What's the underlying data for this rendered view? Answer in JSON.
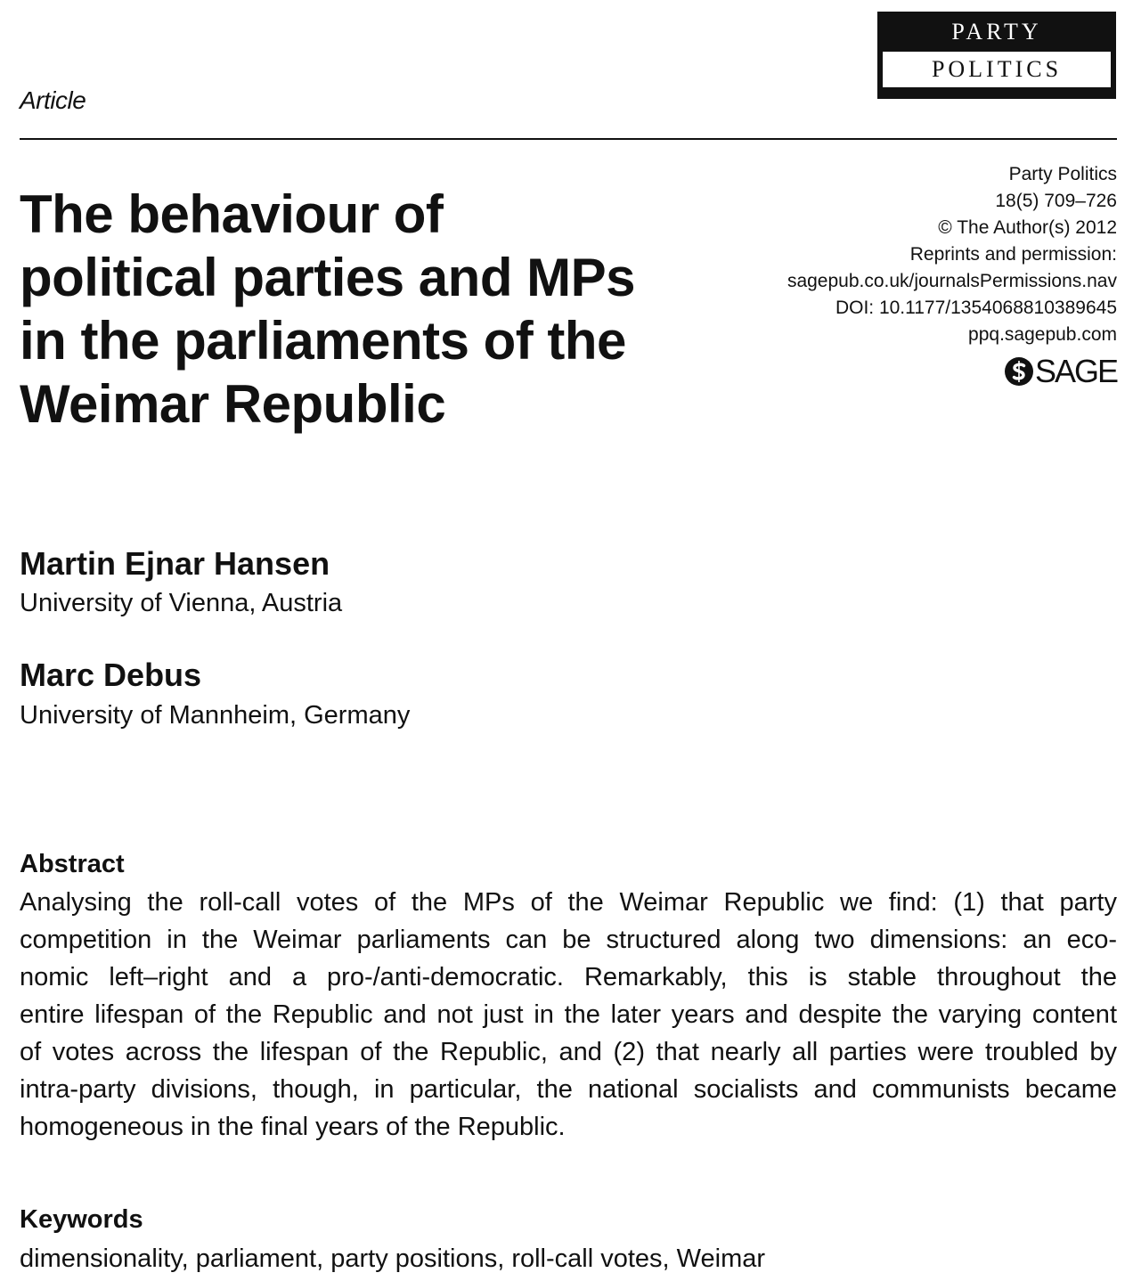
{
  "journal_logo": {
    "line1": "PARTY",
    "line2": "POLITICS"
  },
  "article_label": "Article",
  "meta": {
    "lines": [
      "Party Politics",
      "18(5) 709–726",
      "© The Author(s) 2012",
      "Reprints and permission:",
      "sagepub.co.uk/journalsPermissions.nav",
      "DOI: 10.1177/1354068810389645",
      "ppq.sagepub.com"
    ]
  },
  "publisher_logo": {
    "text": "SAGE",
    "icon": "sage-s-icon"
  },
  "title": {
    "lines": [
      "The behaviour of",
      "political parties and MPs",
      "in the parliaments of the",
      "Weimar Republic"
    ]
  },
  "authors": [
    {
      "name": "Martin Ejnar Hansen",
      "affiliation": "University of Vienna, Austria"
    },
    {
      "name": "Marc Debus",
      "affiliation": "University of Mannheim, Germany"
    }
  ],
  "abstract": {
    "heading": "Abstract",
    "lines": [
      "Analysing the roll-call votes of the MPs of the Weimar Republic we find: (1) that party",
      "competition in the Weimar parliaments can be structured along two dimensions: an eco-",
      "nomic left–right and a pro-/anti-democratic. Remarkably, this is stable throughout the",
      "entire lifespan of the Republic and not just in the later years and despite the varying content",
      "of votes across the lifespan of the Republic, and (2) that nearly all parties were troubled by",
      "intra-party divisions, though, in particular, the national socialists and communists became",
      "homogeneous in the final years of the Republic."
    ]
  },
  "keywords": {
    "heading": "Keywords",
    "text": "dimensionality, parliament, party positions, roll-call votes, Weimar"
  }
}
